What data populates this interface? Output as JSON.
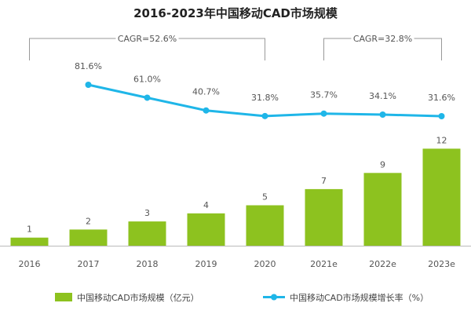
{
  "chart_data": {
    "type": "bar+line",
    "title": "2016-2023年中国移动CAD市场规模",
    "categories": [
      "2016",
      "2017",
      "2018",
      "2019",
      "2020",
      "2021e",
      "2022e",
      "2023e"
    ],
    "series": [
      {
        "name": "中国移动CAD市场规模（亿元）",
        "type": "bar",
        "values": [
          1,
          2,
          3,
          4,
          5,
          7,
          9,
          12
        ],
        "labels": [
          "1",
          "2",
          "3",
          "4",
          "5",
          "7",
          "9",
          "12"
        ],
        "color": "#8dc21f"
      },
      {
        "name": "中国移动CAD市场规模增长率（%）",
        "type": "line",
        "values": [
          null,
          81.6,
          61.0,
          40.7,
          31.8,
          35.7,
          34.1,
          31.6
        ],
        "labels": [
          "",
          "81.6%",
          "61.0%",
          "40.7%",
          "31.8%",
          "35.7%",
          "34.1%",
          "31.6%"
        ],
        "color": "#1fb6e8"
      }
    ],
    "annotations": [
      {
        "text": "CAGR=52.6%",
        "from": "2016",
        "to": "2020"
      },
      {
        "text": "CAGR=32.8%",
        "from": "2021e",
        "to": "2023e"
      }
    ],
    "grid": false,
    "legend_position": "bottom"
  }
}
